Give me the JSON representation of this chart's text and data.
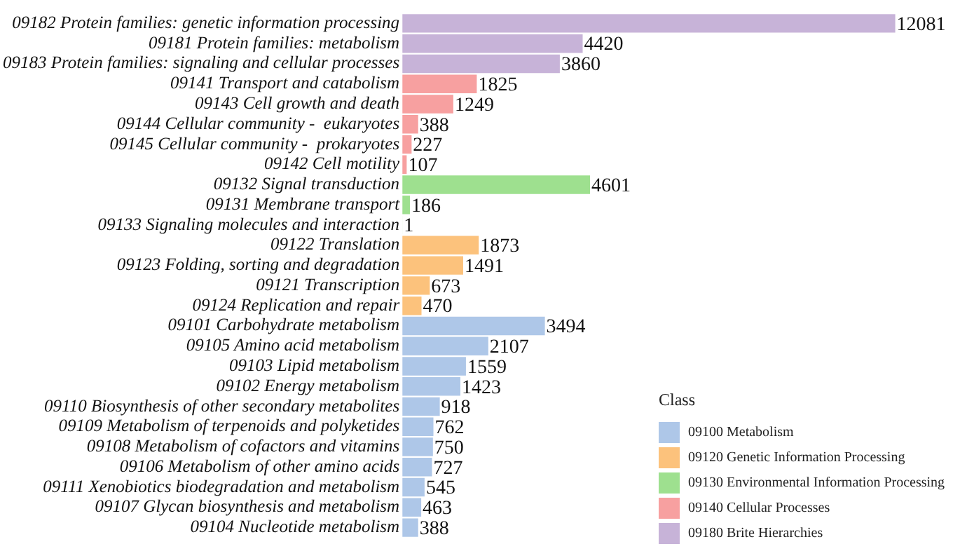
{
  "chart_data": {
    "type": "bar",
    "orientation": "horizontal",
    "data_labels": true,
    "legend": "bottom right",
    "legend_title": "Class",
    "categories": [
      "09182 Protein families: genetic information processing",
      "09181 Protein families: metabolism",
      "09183 Protein families: signaling and cellular processes",
      "09141 Transport and catabolism",
      "09143 Cell growth and death",
      "09144 Cellular community -  eukaryotes",
      "09145 Cellular community -  prokaryotes",
      "09142 Cell motility",
      "09132 Signal transduction",
      "09131 Membrane transport",
      "09133 Signaling molecules and interaction",
      "09122 Translation",
      "09123 Folding, sorting and degradation",
      "09121 Transcription",
      "09124 Replication and repair",
      "09101 Carbohydrate metabolism",
      "09105 Amino acid metabolism",
      "09103 Lipid metabolism",
      "09102 Energy metabolism",
      "09110 Biosynthesis of other secondary metabolites",
      "09109 Metabolism of terpenoids and polyketides",
      "09108 Metabolism of cofactors and vitamins",
      "09106 Metabolism of other amino acids",
      "09111 Xenobiotics biodegradation and metabolism",
      "09107 Glycan biosynthesis and metabolism",
      "09104 Nucleotide metabolism"
    ],
    "series": [
      {
        "name": "09100 Metabolism",
        "color": "#aec7e8",
        "values": [
          null,
          null,
          null,
          null,
          null,
          null,
          null,
          null,
          null,
          null,
          null,
          null,
          null,
          null,
          null,
          3494,
          2107,
          1559,
          1423,
          918,
          762,
          750,
          727,
          545,
          463,
          388
        ]
      },
      {
        "name": "09120 Genetic Information Processing",
        "color": "#fcc27c",
        "values": [
          null,
          null,
          null,
          null,
          null,
          null,
          null,
          null,
          null,
          null,
          null,
          1873,
          1491,
          673,
          470,
          null,
          null,
          null,
          null,
          null,
          null,
          null,
          null,
          null,
          null,
          null
        ]
      },
      {
        "name": "09130 Environmental Information Processing",
        "color": "#9ee08f",
        "values": [
          null,
          null,
          null,
          null,
          null,
          null,
          null,
          null,
          4601,
          186,
          1,
          null,
          null,
          null,
          null,
          null,
          null,
          null,
          null,
          null,
          null,
          null,
          null,
          null,
          null,
          null
        ]
      },
      {
        "name": "09140 Cellular Processes",
        "color": "#f7a0a0",
        "values": [
          null,
          null,
          null,
          1825,
          1249,
          388,
          227,
          107,
          null,
          null,
          null,
          null,
          null,
          null,
          null,
          null,
          null,
          null,
          null,
          null,
          null,
          null,
          null,
          null,
          null,
          null
        ]
      },
      {
        "name": "09180 Brite Hierarchies",
        "color": "#c7b3d8",
        "values": [
          12081,
          4420,
          3860,
          null,
          null,
          null,
          null,
          null,
          null,
          null,
          null,
          null,
          null,
          null,
          null,
          null,
          null,
          null,
          null,
          null,
          null,
          null,
          null,
          null,
          null,
          null
        ]
      }
    ]
  }
}
